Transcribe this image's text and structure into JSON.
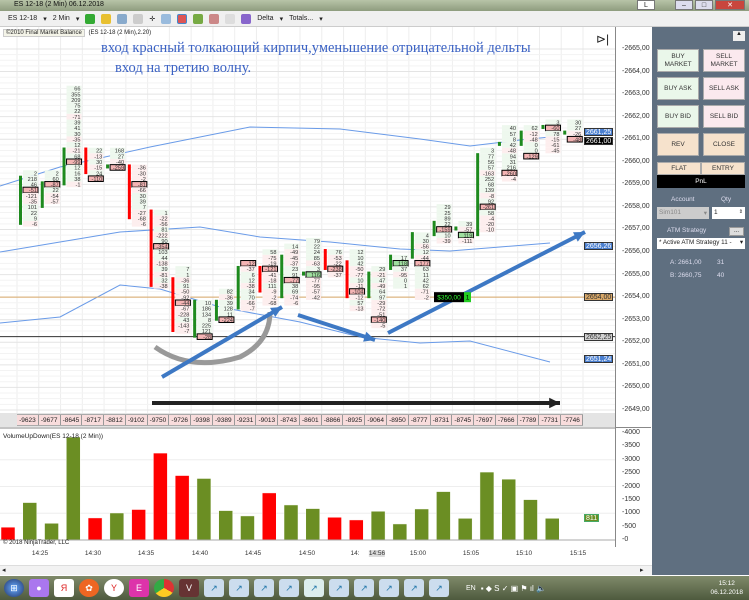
{
  "window": {
    "title": "ES 12-18 (2 Min)  06.12.2018",
    "layout_button": "L"
  },
  "toolbar": {
    "instrument": "ES 12-18",
    "interval": "2 Min",
    "delta_menu": "Delta",
    "totals_menu": "Totals..."
  },
  "indicator_label": {
    "source": "©2010 Final Market Balance",
    "params": "(ES 12-18 (2 Min),2.20)"
  },
  "annotations": {
    "line1": "вход красный толкающий кирпич,уменьшение отрицательной дельты",
    "line2": "вход на третию волну."
  },
  "price_axis": {
    "ticks": [
      "2665,00",
      "2664,00",
      "2663,00",
      "2662,00",
      "2661,00",
      "2660,00",
      "2659,00",
      "2658,00",
      "2657,00",
      "2656,00",
      "2655,00",
      "2654,00",
      "2653,00",
      "2652,00",
      "2651,00",
      "2650,00",
      "2649,00"
    ],
    "markers": [
      {
        "text": "2661,25",
        "price": 2661.25,
        "color": "#4a7fd0"
      },
      {
        "text": "2661,00",
        "price": 2661.0,
        "color": "#000000"
      },
      {
        "text": "2656,26",
        "price": 2656.26,
        "color": "#4a7fd0"
      },
      {
        "text": "2654,00",
        "price": 2654.0,
        "color": "#d9a868"
      },
      {
        "text": "2652,25",
        "price": 2652.25,
        "color": "#d0d0d0"
      },
      {
        "text": "2651,24",
        "price": 2651.24,
        "color": "#4a7fd0"
      }
    ]
  },
  "position": {
    "pnl": "$350,00",
    "qty": "1"
  },
  "chart_data": [
    {
      "type": "footprint",
      "tick": 0.25,
      "ylim": [
        2648.5,
        2665.5
      ],
      "bars": [
        {
          "high": 2659.5,
          "open": 2657.25,
          "close": 2659.25,
          "cells": [
            "2",
            "218",
            "46",
            "-51",
            "-121",
            "-35",
            "101",
            "22",
            "9",
            "-6"
          ],
          "poc": 3
        },
        {
          "high": 2659.5,
          "open": 2658.0,
          "close": 2659.0,
          "cells": [
            "2",
            "60",
            "-87",
            "22",
            "-54",
            "-57"
          ],
          "poc": 2
        },
        {
          "high": 2663.25,
          "open": 2659.0,
          "close": 2660.5,
          "cells": [
            "66",
            "355",
            "209",
            "75",
            "22",
            "-71",
            "39",
            "41",
            "30",
            "-35",
            "12",
            "-21",
            "68",
            "-99",
            "12",
            "16",
            "38",
            "-1"
          ],
          "poc": 13
        },
        {
          "high": 2660.5,
          "open": 2660.5,
          "close": 2659.5,
          "cells": [
            "22",
            "-13",
            "30",
            "-15",
            "24",
            "-110"
          ],
          "poc": 5
        },
        {
          "high": 2660.5,
          "open": 2659.75,
          "close": 2659.75,
          "cells": [
            "168",
            "27",
            "-40",
            "-259"
          ],
          "poc": 3
        },
        {
          "high": 2659.75,
          "open": 2659.75,
          "close": 2657.5,
          "cells": [
            "-36",
            "-30",
            "-2",
            "-81",
            "-66",
            "30",
            "39",
            "7",
            "-27",
            "-68",
            "-6"
          ],
          "poc": 3
        },
        {
          "high": 2657.75,
          "open": 2657.75,
          "close": 2654.5,
          "cells": [
            "1",
            "-22",
            "-56",
            "81",
            "-222",
            "90",
            "-354",
            "103",
            "44",
            "-138",
            "39",
            "-81",
            "32",
            "-38"
          ],
          "poc": 6
        },
        {
          "high": 2655.25,
          "open": 2654.75,
          "close": 2652.5,
          "cells": [
            "7",
            "1",
            "-36",
            "91",
            "-50",
            "-92",
            "-44",
            "-67",
            "-228",
            "43",
            "-143",
            "-7"
          ],
          "poc": 6
        },
        {
          "high": 2653.75,
          "open": 2652.25,
          "close": 2653.75,
          "cells": [
            "10",
            "186",
            "134",
            "8",
            "225",
            "121",
            "-28"
          ],
          "poc": 6
        },
        {
          "high": 2654.25,
          "open": 2653.0,
          "close": 2653.75,
          "cells": [
            "82",
            "-36",
            "39",
            "128",
            "11",
            "-224"
          ],
          "poc": 5
        },
        {
          "high": 2655.5,
          "open": 2653.5,
          "close": 2655.25,
          "cells": [
            "-12",
            "-37",
            "6",
            "12",
            "-38",
            "34",
            "70",
            "-66",
            "-7"
          ],
          "poc": 0
        },
        {
          "high": 2656.0,
          "open": 2655.25,
          "close": 2654.25,
          "cells": [
            "58",
            "-75",
            "-19",
            "-121",
            "-41",
            "-18",
            "111",
            "-9",
            "-2",
            "-68"
          ],
          "poc": 3
        },
        {
          "high": 2656.25,
          "open": 2654.0,
          "close": 2655.75,
          "cells": [
            "14",
            "-49",
            "-45",
            "-37",
            "23",
            "91",
            "-77",
            "38",
            "69",
            "-74",
            "-6"
          ],
          "poc": 6
        },
        {
          "high": 2656.5,
          "open": 2655.0,
          "close": 2655.0,
          "cells": [
            "79",
            "22",
            "24",
            "85",
            "-63",
            "3",
            "116",
            "-77",
            "-95",
            "-57",
            "-42"
          ],
          "poc": 6
        },
        {
          "high": 2656.0,
          "open": 2656.0,
          "close": 2655.25,
          "cells": [
            "76",
            "-53",
            "-22",
            "-238",
            "-37"
          ],
          "poc": 3
        },
        {
          "high": 2656.0,
          "open": 2655.5,
          "close": 2654.0,
          "cells": [
            "12",
            "10",
            "42",
            "-50",
            "-77",
            "10",
            "-11",
            "-104",
            "-12",
            "57",
            "-13"
          ],
          "poc": 7
        },
        {
          "high": 2655.25,
          "open": 2654.0,
          "close": 2655.0,
          "cells": [
            "29",
            "-21",
            "47",
            "-49",
            "64",
            "97",
            "-29",
            "-72",
            "-51",
            "-140",
            "-5"
          ],
          "poc": 9
        },
        {
          "high": 2655.75,
          "open": 2655.25,
          "close": 2655.75,
          "cells": [
            "17",
            "118",
            "37",
            "-95",
            "0",
            "1"
          ],
          "poc": 1
        },
        {
          "high": 2656.75,
          "open": 2655.75,
          "close": 2656.75,
          "cells": [
            "4",
            "30",
            "-56",
            "12",
            "-44",
            "-177",
            "63",
            "11",
            "42",
            "62",
            "-71",
            "-2"
          ],
          "poc": 5
        },
        {
          "high": 2658.0,
          "open": 2656.75,
          "close": 2657.25,
          "cells": [
            "29",
            "25",
            "89",
            "22",
            "-159",
            "10",
            "-39"
          ],
          "poc": 4
        },
        {
          "high": 2657.25,
          "open": 2657.0,
          "close": 2657.0,
          "cells": [
            "39",
            "-57",
            "119",
            "-111"
          ],
          "poc": 2
        },
        {
          "high": 2660.5,
          "open": 2656.75,
          "close": 2660.25,
          "cells": [
            "3",
            "77",
            "56",
            "57",
            "-163",
            "252",
            "68",
            "139",
            "-8",
            "92",
            "-261",
            "58",
            "-4",
            "-20",
            "-10"
          ],
          "poc": 10
        },
        {
          "high": 2661.5,
          "open": 2660.75,
          "close": 2660.75,
          "cells": [
            "40",
            "57",
            "8",
            "42",
            "-48",
            "94",
            "31",
            "216",
            "-260",
            "-4"
          ],
          "poc": 8
        },
        {
          "high": 2661.5,
          "open": 2660.75,
          "close": 2661.25,
          "cells": [
            "62",
            "-12",
            "-48",
            "0",
            "0",
            "-129"
          ],
          "poc": 5
        },
        {
          "high": 2661.75,
          "open": 2661.5,
          "close": 2661.5,
          "cells": [
            "3",
            "-60",
            "78",
            "-15",
            "-61",
            "-45"
          ],
          "poc": 1
        },
        {
          "high": 2661.75,
          "open": 2661.25,
          "close": 2661.25,
          "cells": [
            "30",
            "27",
            "-26",
            "-48"
          ],
          "poc": 3
        }
      ],
      "bar_delta": [
        "-9623",
        "-9677",
        "-8645",
        "-8717",
        "-8812",
        "-9102",
        "-9750",
        "-9726",
        "-9398",
        "-9389",
        "-9231",
        "-9013",
        "-8743",
        "-8601",
        "-8866",
        "-8925",
        "-9064",
        "-8950",
        "-8777",
        "-8731",
        "-8745",
        "-7697",
        "-7666",
        "-7789",
        "-7731",
        "-7746"
      ],
      "colors": {
        "up": "#1e8a1e",
        "down": "#ff0000",
        "bands": "#6a9be8"
      }
    },
    {
      "type": "bar",
      "title": "VolumeUpDown(ES 12-18 (2 Min))",
      "ylim": [
        0,
        4000
      ],
      "yticks": [
        "4000",
        "3500",
        "3000",
        "2500",
        "2000",
        "1500",
        "1000",
        "500",
        "0"
      ],
      "last_value": "811",
      "values": [
        480,
        1400,
        625,
        3850,
        825,
        1010,
        1140,
        3250,
        2410,
        2300,
        1100,
        900,
        1760,
        1310,
        1175,
        850,
        750,
        1075,
        600,
        1160,
        1810,
        810,
        2540,
        2275,
        1510,
        811
      ],
      "direction": [
        "down",
        "up",
        "up",
        "up",
        "down",
        "up",
        "down",
        "down",
        "down",
        "up",
        "up",
        "up",
        "down",
        "up",
        "up",
        "down",
        "down",
        "up",
        "up",
        "up",
        "up",
        "up",
        "up",
        "up",
        "up",
        "up"
      ],
      "colors": {
        "up": "#6b8e23",
        "down": "#ff0000"
      }
    }
  ],
  "time_axis": {
    "labels": [
      "14:25",
      "14:30",
      "14:35",
      "14:40",
      "14:45",
      "14:50",
      "14:",
      "15:00",
      "15:05",
      "15:10",
      "15:15"
    ],
    "cursor_time": "14:56"
  },
  "copyright": "© 2018 NinjaTrader, LLC",
  "chart_trader": {
    "buy_market": "BUY MARKET",
    "sell_market": "SELL MARKET",
    "buy_ask": "BUY ASK",
    "sell_ask": "SELL ASK",
    "buy_bid": "BUY BID",
    "sell_bid": "SELL BID",
    "rev": "REV",
    "close": "CLOSE",
    "flat": "FLAT",
    "entry": "ENTRY",
    "pnl": "PnL",
    "account_label": "Account",
    "account_value": "Sim101",
    "qty_label": "Qty",
    "qty_value": "1",
    "atm_label": "ATM Strategy",
    "atm_more": "...",
    "atm_value": "* Active ATM Strategy 11 -",
    "ask": "A: 2661,00",
    "ask_size": "31",
    "bid": "B: 2660,75",
    "bid_size": "40"
  },
  "taskbar": {
    "language": "EN",
    "time": "15:12",
    "date": "06.12.2018"
  }
}
